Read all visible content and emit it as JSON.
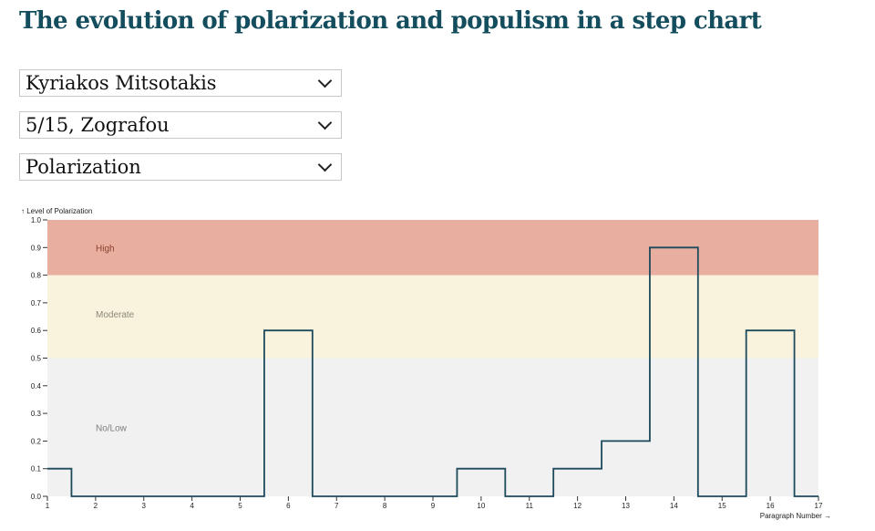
{
  "title": "The evolution of polarization and populism in a step chart",
  "selects": [
    {
      "value": "Kyriakos Mitsotakis"
    },
    {
      "value": "5/15, Zografou"
    },
    {
      "value": "Polarization"
    }
  ],
  "chart_data": {
    "type": "line",
    "curve": "step",
    "ylabel": "↑ Level of Polarization",
    "xlabel": "Paragraph Number →",
    "xlim": [
      1,
      17
    ],
    "ylim": [
      0,
      1
    ],
    "yticks": [
      "0.0",
      "0.1",
      "0.2",
      "0.3",
      "0.4",
      "0.5",
      "0.6",
      "0.7",
      "0.8",
      "0.9",
      "1.0"
    ],
    "x": [
      1,
      2,
      3,
      4,
      5,
      6,
      7,
      8,
      9,
      10,
      11,
      12,
      13,
      14,
      15,
      16,
      17
    ],
    "values": [
      0.1,
      0,
      0,
      0,
      0,
      0.6,
      0,
      0,
      0,
      0.1,
      0,
      0.1,
      0.2,
      0.9,
      0,
      0.6,
      0
    ],
    "bands": [
      {
        "label": "No/Low",
        "from": 0,
        "to": 0.5,
        "color": "#f0f1f0",
        "text_color": "#7d7d7d"
      },
      {
        "label": "Moderate",
        "from": 0.5,
        "to": 0.8,
        "color": "#f9f2dc",
        "text_color": "#8a8a7a"
      },
      {
        "label": "High",
        "from": 0.8,
        "to": 1.0,
        "color": "#e8afa0",
        "text_color": "#8b3f2e"
      }
    ],
    "line_color": "#1d4a5c"
  }
}
